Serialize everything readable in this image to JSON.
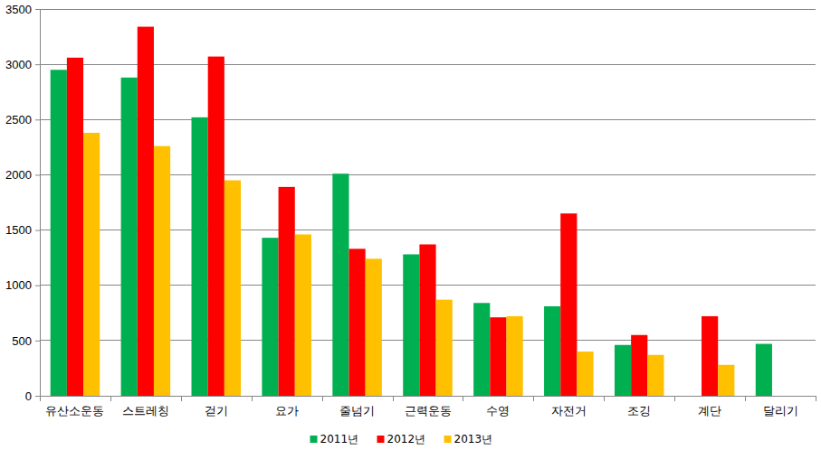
{
  "chart_data": {
    "type": "bar",
    "categories": [
      "유산소운동",
      "스트레칭",
      "걷기",
      "요가",
      "줄넘기",
      "근력운동",
      "수영",
      "자전거",
      "조깅",
      "계단",
      "달리기"
    ],
    "series": [
      {
        "name": "2011년",
        "color": "#00b050",
        "values": [
          2950,
          2880,
          2520,
          1430,
          2010,
          1280,
          840,
          810,
          460,
          null,
          470
        ]
      },
      {
        "name": "2012년",
        "color": "#ff0000",
        "values": [
          3060,
          3340,
          3070,
          1890,
          1330,
          1370,
          710,
          1650,
          550,
          720,
          null
        ]
      },
      {
        "name": "2013년",
        "color": "#ffc000",
        "values": [
          2380,
          2260,
          1950,
          1460,
          1240,
          870,
          720,
          400,
          370,
          280,
          null
        ]
      }
    ],
    "ylim": [
      0,
      3500
    ],
    "yticks": [
      0,
      500,
      1000,
      1500,
      2000,
      2500,
      3000,
      3500
    ],
    "grid": true,
    "legend": "bottom"
  }
}
